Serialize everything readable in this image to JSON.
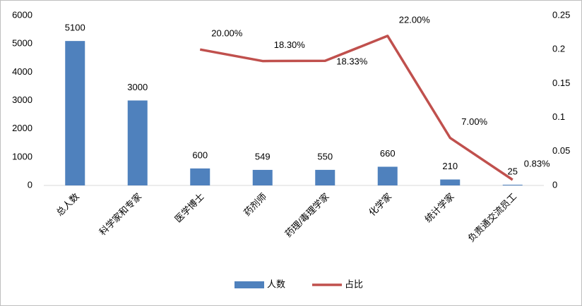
{
  "chart_data": {
    "type": "bar",
    "categories": [
      "总人数",
      "科学家和专家",
      "医学博士",
      "药剂师",
      "药理/毒理学家",
      "化学家",
      "统计学家",
      "负责通交流员工"
    ],
    "series": [
      {
        "name": "人数",
        "type": "bar",
        "color": "#4f81bd",
        "values": [
          5100,
          3000,
          600,
          549,
          550,
          660,
          210,
          25
        ]
      },
      {
        "name": "占比",
        "type": "line",
        "axis": "y2",
        "color": "#c0504d",
        "values": [
          null,
          null,
          0.2,
          0.183,
          0.1833,
          0.22,
          0.07,
          0.0083
        ],
        "value_labels": [
          null,
          null,
          "20.00%",
          "18.30%",
          "18.33%",
          "22.00%",
          "7.00%",
          "0.83%"
        ]
      }
    ],
    "ylim": [
      0,
      6000
    ],
    "yticks": [
      0,
      1000,
      2000,
      3000,
      4000,
      5000,
      6000
    ],
    "y2lim": [
      0,
      0.25
    ],
    "y2ticks": [
      0,
      0.05,
      0.1,
      0.15,
      0.2,
      0.25
    ],
    "grid": false,
    "legend": "bottom"
  }
}
